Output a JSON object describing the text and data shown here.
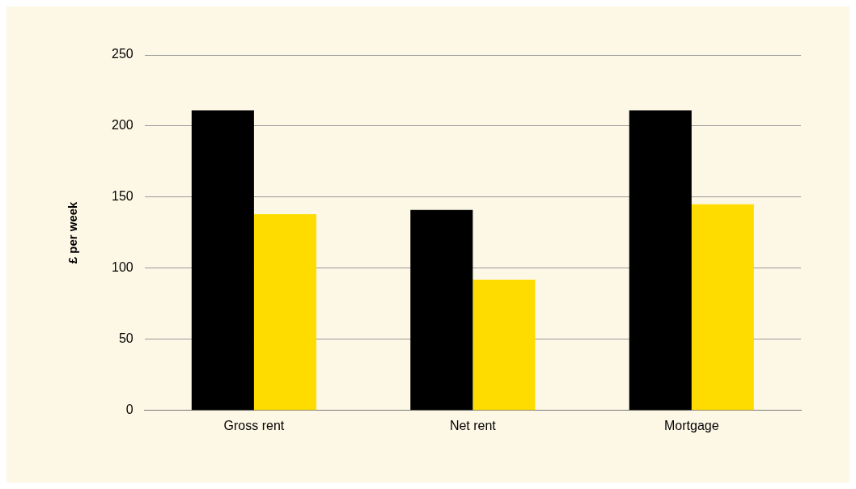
{
  "chart_data": {
    "type": "bar",
    "ylabel": "£ per week",
    "categories": [
      "Gross rent",
      "Net rent",
      "Mortgage"
    ],
    "series": [
      {
        "color": "#000000",
        "values": [
          211,
          141,
          211
        ]
      },
      {
        "color": "#ffdc00",
        "values": [
          138,
          92,
          145
        ]
      }
    ],
    "ylim": [
      0,
      250
    ],
    "yticks": [
      0,
      50,
      100,
      150,
      200,
      250
    ],
    "grid": "y",
    "legend": false
  }
}
